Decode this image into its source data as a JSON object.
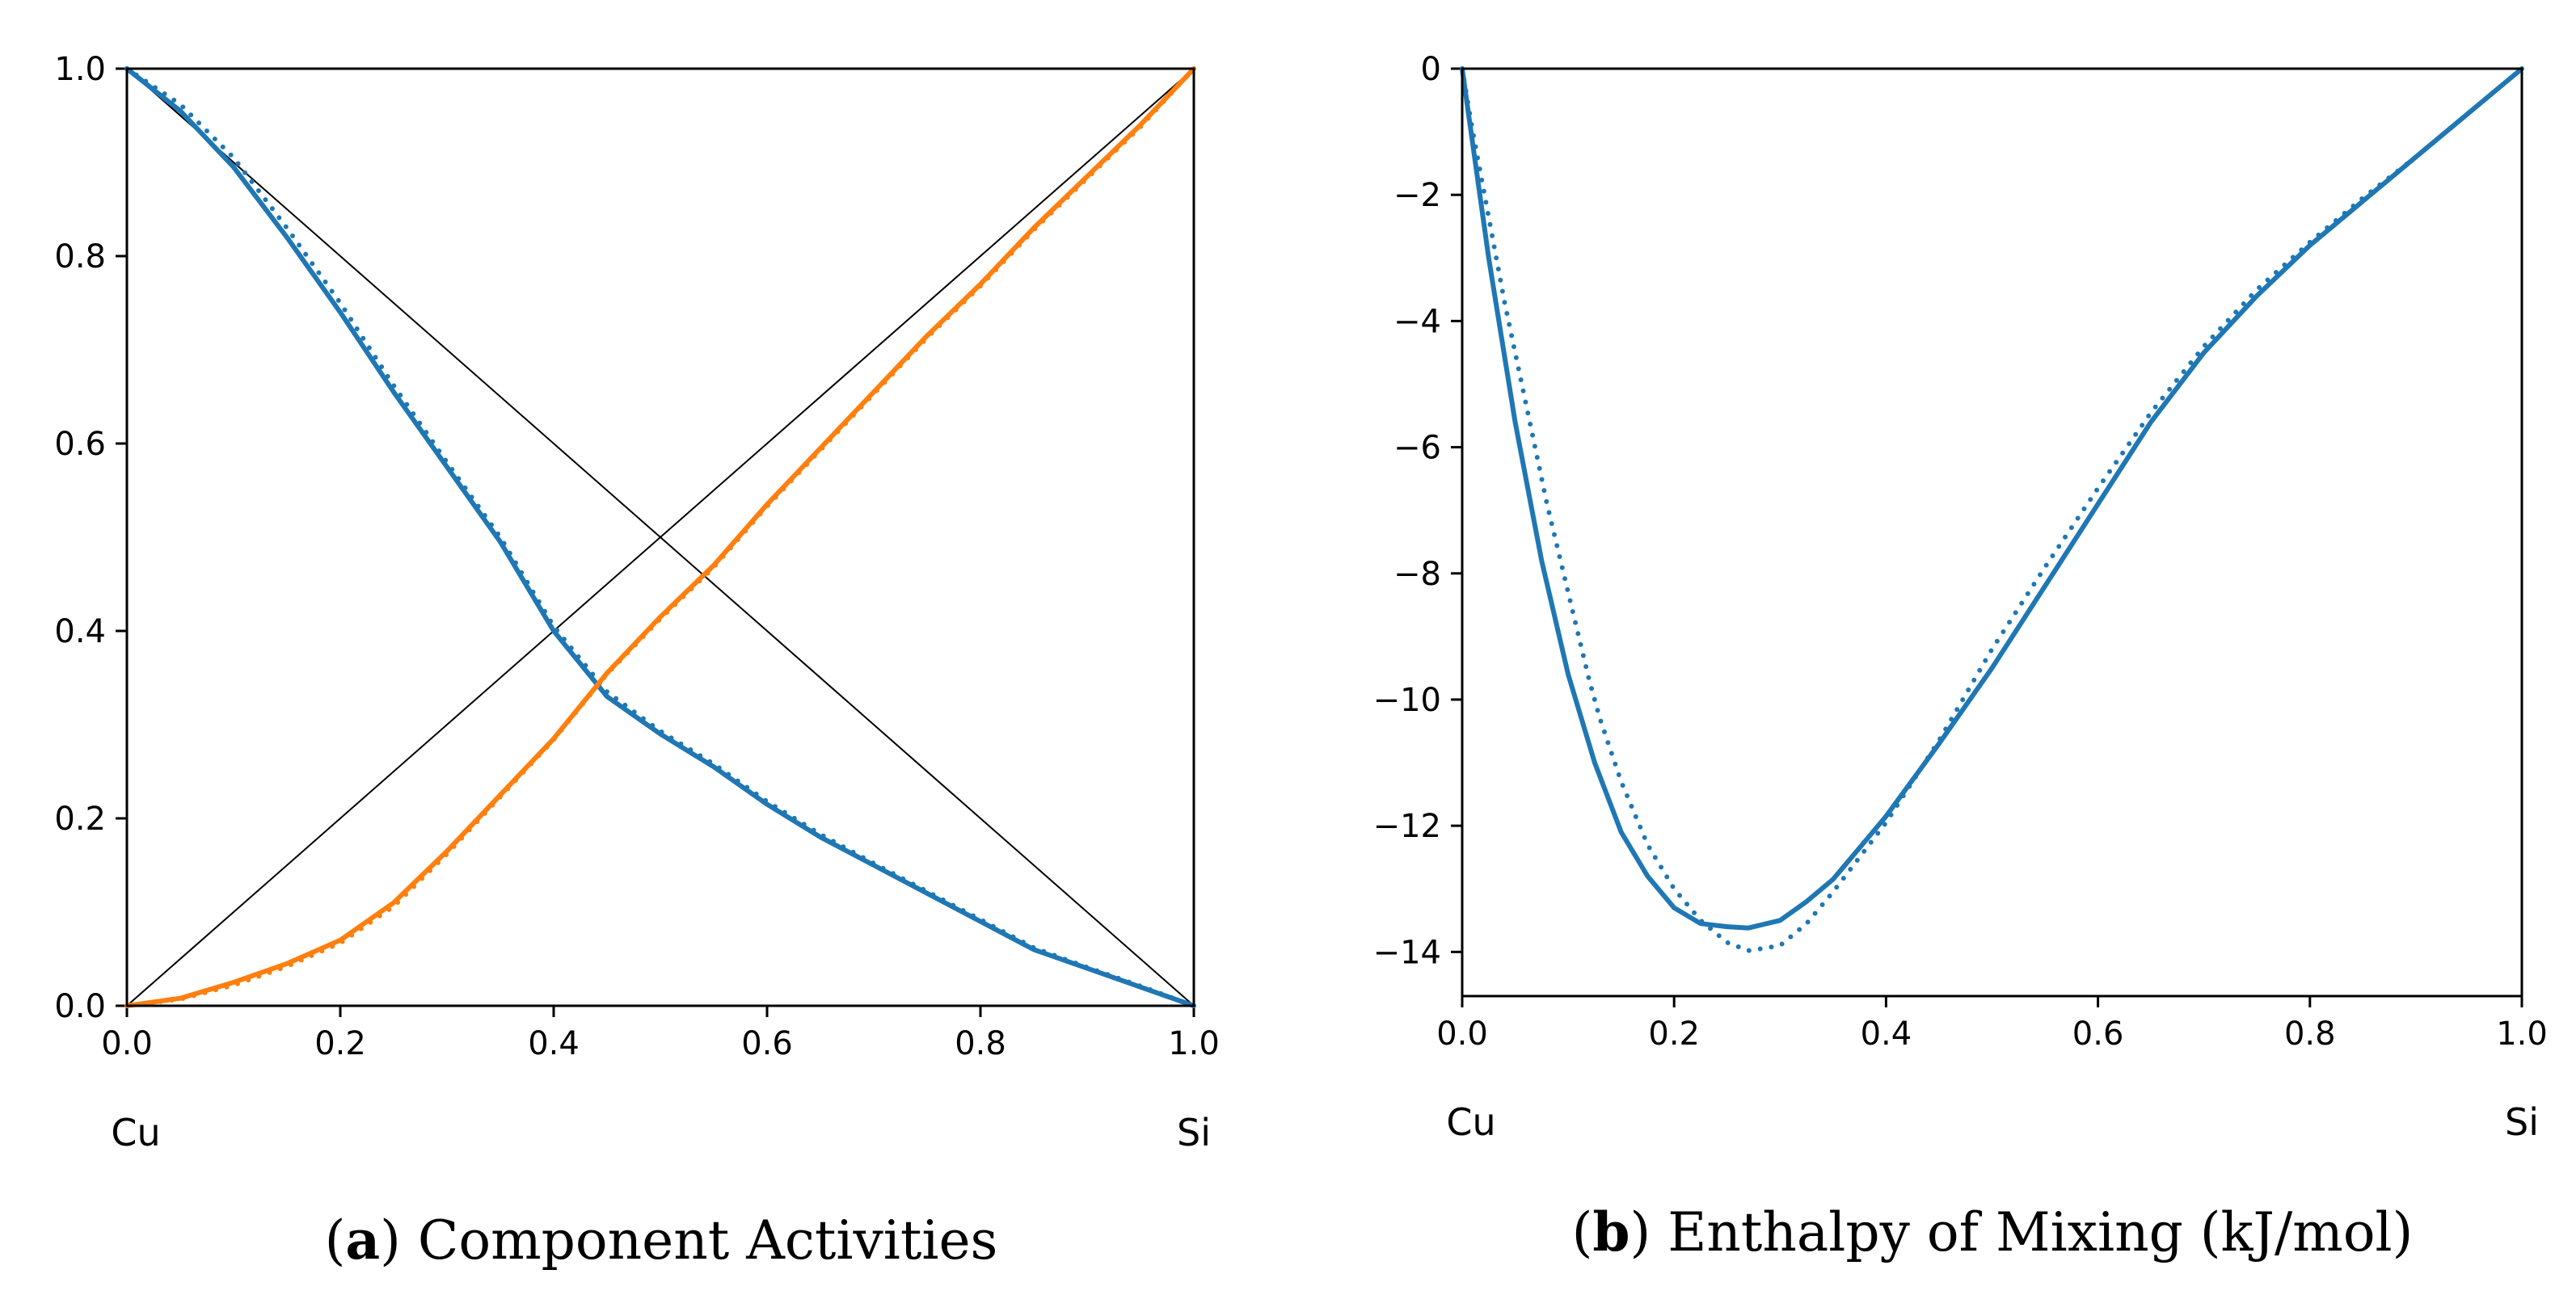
{
  "colors": {
    "series_blue": "#1f77b4",
    "series_orange": "#ff7f0e",
    "axis": "#000000",
    "reference_line": "#000000"
  },
  "chart_data": [
    {
      "id": "a",
      "type": "line",
      "caption_letter": "a",
      "caption_text": "Component Activities",
      "xlim": [
        0,
        1
      ],
      "ylim": [
        0,
        1
      ],
      "xticks": [
        0.0,
        0.2,
        0.4,
        0.6,
        0.8,
        1.0
      ],
      "xtick_labels": [
        "0.0",
        "0.2",
        "0.4",
        "0.6",
        "0.8",
        "1.0"
      ],
      "yticks": [
        0.0,
        0.2,
        0.4,
        0.6,
        0.8,
        1.0
      ],
      "ytick_labels": [
        "0.0",
        "0.2",
        "0.4",
        "0.6",
        "0.8",
        "1.0"
      ],
      "x_left_label": "Cu",
      "x_right_label": "Si",
      "grid": false,
      "legend": "none",
      "reference_lines": [
        {
          "name": "raoult-cu",
          "x": [
            0,
            1
          ],
          "y": [
            1,
            0
          ]
        },
        {
          "name": "raoult-si",
          "x": [
            0,
            1
          ],
          "y": [
            0,
            1
          ]
        }
      ],
      "series": [
        {
          "name": "a_Cu",
          "style": "solid",
          "color": "#1f77b4",
          "x": [
            0,
            0.05,
            0.1,
            0.15,
            0.2,
            0.25,
            0.3,
            0.35,
            0.4,
            0.45,
            0.5,
            0.55,
            0.6,
            0.65,
            0.7,
            0.75,
            0.8,
            0.85,
            0.9,
            0.95,
            1.0
          ],
          "y": [
            1.0,
            0.955,
            0.895,
            0.82,
            0.74,
            0.655,
            0.575,
            0.495,
            0.4,
            0.33,
            0.29,
            0.255,
            0.215,
            0.18,
            0.15,
            0.12,
            0.09,
            0.06,
            0.04,
            0.02,
            0.0
          ]
        },
        {
          "name": "a_Cu (dotted)",
          "style": "dotted",
          "color": "#1f77b4",
          "x": [
            0,
            0.05,
            0.1,
            0.15,
            0.2,
            0.25,
            0.3,
            0.35,
            0.4,
            0.45,
            0.5,
            0.55,
            0.6,
            0.65,
            0.7,
            0.75,
            0.8,
            0.85,
            0.9,
            0.95,
            1.0
          ],
          "y": [
            1.0,
            0.962,
            0.905,
            0.83,
            0.75,
            0.662,
            0.58,
            0.5,
            0.405,
            0.335,
            0.293,
            0.258,
            0.218,
            0.183,
            0.152,
            0.122,
            0.092,
            0.062,
            0.041,
            0.021,
            0.0
          ]
        },
        {
          "name": "a_Si",
          "style": "solid",
          "color": "#ff7f0e",
          "x": [
            0,
            0.05,
            0.1,
            0.15,
            0.2,
            0.25,
            0.3,
            0.35,
            0.4,
            0.45,
            0.5,
            0.55,
            0.6,
            0.65,
            0.7,
            0.75,
            0.8,
            0.85,
            0.9,
            0.95,
            1.0
          ],
          "y": [
            0.0,
            0.008,
            0.025,
            0.045,
            0.07,
            0.11,
            0.165,
            0.225,
            0.285,
            0.355,
            0.415,
            0.47,
            0.535,
            0.595,
            0.655,
            0.715,
            0.77,
            0.83,
            0.885,
            0.94,
            1.0
          ]
        },
        {
          "name": "a_Si (dotted)",
          "style": "dotted",
          "color": "#ff7f0e",
          "x": [
            0,
            0.05,
            0.1,
            0.15,
            0.2,
            0.25,
            0.3,
            0.35,
            0.4,
            0.45,
            0.5,
            0.55,
            0.6,
            0.65,
            0.7,
            0.75,
            0.8,
            0.85,
            0.9,
            0.95,
            1.0
          ],
          "y": [
            0.0,
            0.007,
            0.022,
            0.042,
            0.067,
            0.106,
            0.162,
            0.223,
            0.284,
            0.354,
            0.413,
            0.468,
            0.533,
            0.593,
            0.653,
            0.713,
            0.768,
            0.828,
            0.883,
            0.938,
            1.0
          ]
        }
      ]
    },
    {
      "id": "b",
      "type": "line",
      "caption_letter": "b",
      "caption_text": "Enthalpy of Mixing (kJ/mol)",
      "xlim": [
        0,
        1
      ],
      "ylim": [
        -14.7,
        0
      ],
      "xticks": [
        0.0,
        0.2,
        0.4,
        0.6,
        0.8,
        1.0
      ],
      "xtick_labels": [
        "0.0",
        "0.2",
        "0.4",
        "0.6",
        "0.8",
        "1.0"
      ],
      "yticks": [
        0,
        -2,
        -4,
        -6,
        -8,
        -10,
        -12,
        -14
      ],
      "ytick_labels": [
        "0",
        "−2",
        "−4",
        "−6",
        "−8",
        "−10",
        "−12",
        "−14"
      ],
      "x_left_label": "Cu",
      "x_right_label": "Si",
      "grid": false,
      "legend": "none",
      "series": [
        {
          "name": "H_mix",
          "style": "solid",
          "color": "#1f77b4",
          "x": [
            0,
            0.025,
            0.05,
            0.075,
            0.1,
            0.125,
            0.15,
            0.175,
            0.2,
            0.225,
            0.25,
            0.27,
            0.3,
            0.325,
            0.35,
            0.375,
            0.4,
            0.45,
            0.5,
            0.55,
            0.6,
            0.65,
            0.7,
            0.75,
            0.8,
            0.85,
            0.9,
            0.95,
            1.0
          ],
          "y": [
            0,
            -3.0,
            -5.6,
            -7.8,
            -9.6,
            -11.0,
            -12.1,
            -12.8,
            -13.3,
            -13.55,
            -13.6,
            -13.62,
            -13.5,
            -13.2,
            -12.85,
            -12.35,
            -11.85,
            -10.7,
            -9.5,
            -8.2,
            -6.9,
            -5.6,
            -4.5,
            -3.6,
            -2.8,
            -2.1,
            -1.4,
            -0.7,
            0
          ]
        },
        {
          "name": "H_mix (dotted)",
          "style": "dotted",
          "color": "#1f77b4",
          "x": [
            0,
            0.01,
            0.02,
            0.03,
            0.04,
            0.05,
            0.06,
            0.07,
            0.08,
            0.09,
            0.1,
            0.11,
            0.12,
            0.13,
            0.14,
            0.15,
            0.175,
            0.2,
            0.225,
            0.25,
            0.27,
            0.3,
            0.325,
            0.35,
            0.375,
            0.4,
            0.45,
            0.5,
            0.55,
            0.6,
            0.65,
            0.7,
            0.75,
            0.8,
            0.85,
            0.9,
            0.95,
            1.0
          ],
          "y": [
            0,
            -1.0,
            -1.9,
            -2.8,
            -3.7,
            -4.5,
            -5.3,
            -6.1,
            -6.9,
            -7.6,
            -8.3,
            -9.0,
            -9.7,
            -10.3,
            -10.8,
            -11.3,
            -12.3,
            -13.0,
            -13.5,
            -13.85,
            -13.98,
            -13.9,
            -13.55,
            -13.05,
            -12.5,
            -11.95,
            -10.65,
            -9.2,
            -7.9,
            -6.65,
            -5.45,
            -4.4,
            -3.5,
            -2.75,
            -2.05,
            -1.4,
            -0.7,
            0
          ]
        }
      ]
    }
  ]
}
